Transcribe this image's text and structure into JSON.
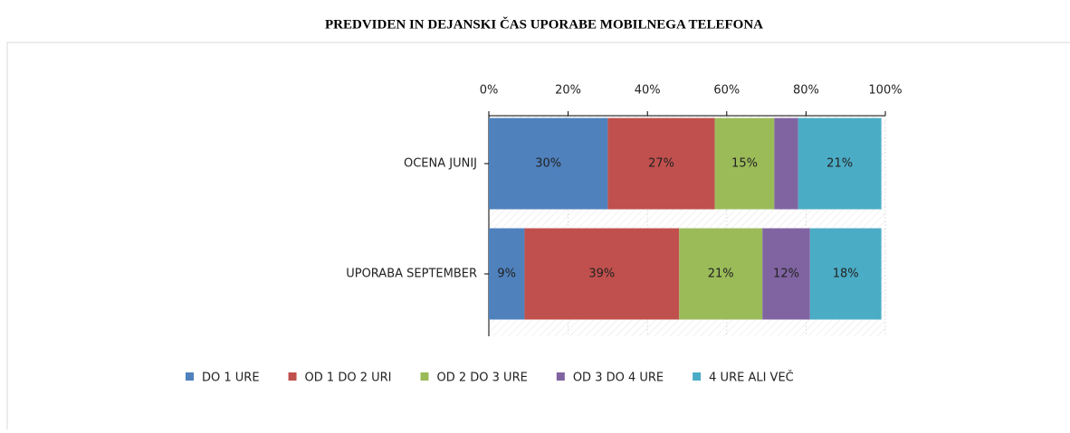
{
  "chart_data": {
    "type": "stacked_bar_horizontal",
    "title": "PREDVIDEN IN DEJANSKI ČAS UPORABE MOBILNEGA TELEFONA",
    "categories": [
      "OCENA JUNIJ",
      "UPORABA SEPTEMBER"
    ],
    "series": [
      {
        "name": "DO 1 URE",
        "color": "#4f81bd",
        "values": [
          30,
          9
        ],
        "value_labels": [
          "30%",
          "9%"
        ]
      },
      {
        "name": "OD 1 DO 2 URI",
        "color": "#c0504d",
        "values": [
          27,
          39
        ],
        "value_labels": [
          "27%",
          "39%"
        ]
      },
      {
        "name": "OD 2 DO 3 URE",
        "color": "#9bbb59",
        "values": [
          15,
          21
        ],
        "value_labels": [
          "15%",
          "21%"
        ]
      },
      {
        "name": "OD 3 DO 4 URE",
        "color": "#8064a2",
        "values": [
          6,
          12
        ],
        "value_labels": [
          null,
          "12%"
        ]
      },
      {
        "name": "4 URE ALI VEČ",
        "color": "#4bacc6",
        "values": [
          21,
          18
        ],
        "value_labels": [
          "21%",
          "18%"
        ]
      }
    ],
    "xlim": [
      0,
      100
    ],
    "xticks": [
      {
        "value": 0,
        "label": "0%"
      },
      {
        "value": 20,
        "label": "20%"
      },
      {
        "value": 40,
        "label": "40%"
      },
      {
        "value": 60,
        "label": "60%"
      },
      {
        "value": 80,
        "label": "80%"
      },
      {
        "value": 100,
        "label": "100%"
      }
    ],
    "grid": true,
    "legend": "bottom"
  }
}
